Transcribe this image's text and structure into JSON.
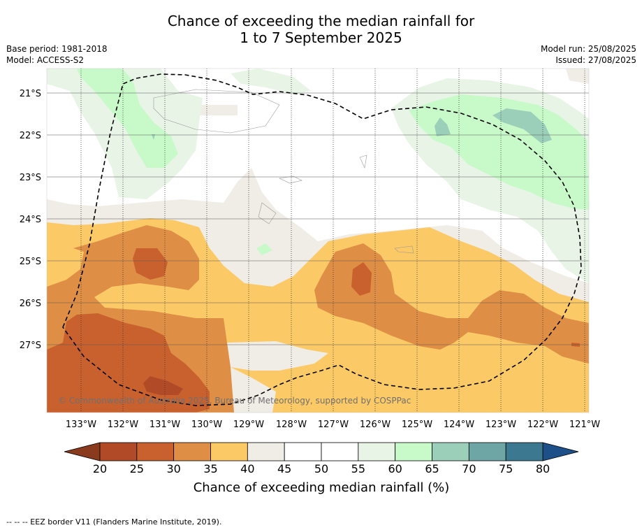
{
  "title": {
    "line1": "Chance of exceeding the median rainfall for",
    "line2": "1 to 7 September 2025"
  },
  "meta": {
    "base_period": "Base period: 1981-2018",
    "model": "Model: ACCESS-S2",
    "model_run": "Model run: 25/08/2025",
    "issued": "Issued: 27/08/2025"
  },
  "map": {
    "lon_labels": [
      "133°W",
      "132°W",
      "131°W",
      "130°W",
      "129°W",
      "128°W",
      "127°W",
      "126°W",
      "125°W",
      "124°W",
      "123°W",
      "122°W",
      "121°W"
    ],
    "lat_labels": [
      "21°S",
      "22°S",
      "23°S",
      "24°S",
      "25°S",
      "26°S",
      "27°S"
    ],
    "copyright": "© Commonwealth of Australia 2025, Bureau of Meteorology, supported by COSPPac",
    "eez_label": "EEZ border"
  },
  "colorbar": {
    "ticks": [
      "20",
      "25",
      "30",
      "35",
      "40",
      "45",
      "50",
      "55",
      "60",
      "65",
      "70",
      "75",
      "80"
    ],
    "colors": [
      "#b04a27",
      "#c9612f",
      "#de8f45",
      "#fbc966",
      "#f0ece6",
      "#ffffff",
      "#ffffff",
      "#e8f4e6",
      "#c8f9c9",
      "#9ccfb9",
      "#6ea6a6",
      "#3d7891"
    ],
    "under_color": "#8a3a1d",
    "over_color": "#1d4f88",
    "label": "Chance of exceeding median rainfall (%)"
  },
  "footnote": "--  --  -- EEZ border V11 (Flanders Marine Institute, 2019)."
}
